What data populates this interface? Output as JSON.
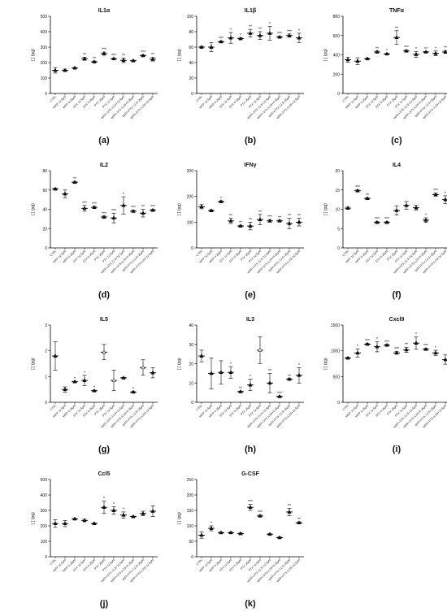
{
  "conditions": [
    "CTRL",
    "WFP 12.5µM",
    "WFP 6.25µM",
    "STX 12.5µM",
    "STX 6.25µM",
    "PTX 25µM",
    "PTX 12.5µM",
    "WFP+STX 12.5+12.5µM",
    "WFP+STX 6.25+6.25µM",
    "WFP+PTX 12.5+25µM",
    "WFP+PTX 6.25+12.5µM"
  ],
  "chart_data": [
    {
      "type": "scatter",
      "panel": "(a)",
      "title": "IL1α",
      "ylabel": "[ ] (pg)",
      "ylim": [
        0,
        500
      ],
      "yticks": [
        0,
        100,
        200,
        300,
        400,
        500
      ],
      "categories_ref": "conditions",
      "means": [
        150,
        150,
        165,
        225,
        205,
        258,
        225,
        215,
        212,
        245,
        222
      ],
      "sd": [
        18,
        8,
        3,
        10,
        5,
        10,
        3,
        15,
        4,
        5,
        12
      ],
      "markers": [
        "filled",
        "filled",
        "filled",
        "filled",
        "filled",
        "filled",
        "filled",
        "filled",
        "filled",
        "filled",
        "filled"
      ],
      "significance": [
        "",
        "",
        "",
        "**",
        "**",
        "***",
        "***",
        "**",
        "",
        "***",
        "**"
      ]
    },
    {
      "type": "scatter",
      "panel": "(b)",
      "title": "IL1β",
      "ylabel": "[ ] (pg)",
      "ylim": [
        0,
        100
      ],
      "yticks": [
        0,
        20,
        40,
        60,
        80,
        100
      ],
      "categories_ref": "conditions",
      "means": [
        60,
        60,
        67,
        72,
        71,
        78,
        75,
        78,
        73,
        75,
        72
      ],
      "sd": [
        1,
        6,
        1,
        7,
        1,
        5,
        5,
        9,
        1,
        2,
        6
      ],
      "markers": [
        "filled",
        "filled",
        "filled",
        "filled",
        "filled",
        "filled",
        "filled",
        "filled",
        "filled",
        "filled",
        "filled"
      ],
      "significance": [
        "",
        "",
        "***",
        "*",
        "*",
        "**",
        "**",
        "*",
        "***",
        "***",
        "*"
      ]
    },
    {
      "type": "scatter",
      "panel": "(c)",
      "title": "TNFα",
      "ylabel": "[ ] (pg)",
      "ylim": [
        0,
        800
      ],
      "yticks": [
        0,
        200,
        400,
        600,
        800
      ],
      "categories_ref": "conditions",
      "means": [
        350,
        335,
        360,
        430,
        410,
        580,
        440,
        405,
        430,
        415,
        430
      ],
      "sd": [
        25,
        35,
        5,
        10,
        5,
        70,
        10,
        30,
        5,
        25,
        15
      ],
      "markers": [
        "filled",
        "filled",
        "filled",
        "filled",
        "filled",
        "filled",
        "filled",
        "filled",
        "filled",
        "filled",
        "filled"
      ],
      "significance": [
        "",
        "",
        "",
        "**",
        "*",
        "**",
        "***",
        "*",
        "**",
        "*",
        "**"
      ]
    },
    {
      "type": "scatter",
      "panel": "(d)",
      "title": "IL2",
      "ylabel": "[ ] (pg)",
      "ylim": [
        0,
        80
      ],
      "yticks": [
        0,
        20,
        40,
        60,
        80
      ],
      "categories_ref": "conditions",
      "means": [
        61,
        56,
        68,
        41,
        42,
        32,
        31,
        44,
        38,
        36,
        39
      ],
      "sd": [
        1,
        4,
        1,
        3,
        1,
        1,
        5,
        9,
        1,
        4,
        1
      ],
      "markers": [
        "filled",
        "filled",
        "filled",
        "filled",
        "filled",
        "filled",
        "filled",
        "filled",
        "filled",
        "filled",
        "filled"
      ],
      "significance": [
        "",
        "",
        "**",
        "***",
        "***",
        "***",
        "***",
        "*",
        "***",
        "**",
        "***"
      ]
    },
    {
      "type": "scatter",
      "panel": "(e)",
      "title": "IFNγ",
      "ylabel": "[ ] (pg)",
      "ylim": [
        0,
        300
      ],
      "yticks": [
        0,
        100,
        200,
        300
      ],
      "categories_ref": "conditions",
      "means": [
        160,
        145,
        180,
        105,
        85,
        85,
        110,
        105,
        105,
        95,
        100
      ],
      "sd": [
        8,
        3,
        3,
        10,
        3,
        15,
        20,
        5,
        3,
        20,
        15
      ],
      "markers": [
        "filled",
        "filled",
        "filled",
        "filled",
        "filled",
        "filled",
        "filled",
        "filled",
        "filled",
        "filled",
        "filled"
      ],
      "significance": [
        "",
        "",
        "*",
        "**",
        "**",
        "**",
        "**",
        "***",
        "**",
        "**",
        "**"
      ]
    },
    {
      "type": "scatter",
      "panel": "(f)",
      "title": "IL4",
      "ylabel": "[ ] (pg)",
      "ylim": [
        0,
        20
      ],
      "yticks": [
        0,
        5,
        10,
        15,
        20
      ],
      "categories_ref": "conditions",
      "means": [
        10.3,
        14.8,
        12.8,
        6.6,
        6.6,
        9.7,
        11.0,
        10.4,
        7.2,
        13.8,
        12.5
      ],
      "sd": [
        0.3,
        0.3,
        0.2,
        0.2,
        0.2,
        1.2,
        1.0,
        0.6,
        0.6,
        0.4,
        1.0
      ],
      "markers": [
        "filled",
        "filled",
        "filled",
        "filled",
        "filled",
        "filled",
        "filled",
        "filled",
        "filled",
        "filled",
        "filled"
      ],
      "significance": [
        "",
        "***",
        "**",
        "***",
        "***",
        "",
        "",
        "",
        "*",
        "***",
        "*"
      ]
    },
    {
      "type": "scatter",
      "panel": "(g)",
      "title": "IL5",
      "ylabel": "[ ] (pg)",
      "ylim": [
        0,
        3
      ],
      "yticks": [
        0,
        1,
        2,
        3
      ],
      "categories_ref": "conditions",
      "means": [
        1.8,
        0.5,
        0.8,
        0.85,
        0.45,
        1.95,
        0.85,
        0.95,
        0.4,
        1.35,
        1.15
      ],
      "sd": [
        0.55,
        0.1,
        0.02,
        0.2,
        0.02,
        0.3,
        0.4,
        0.02,
        0.02,
        0.3,
        0.2
      ],
      "markers": [
        "filled",
        "filled",
        "filled",
        "filled",
        "filled",
        "open",
        "open",
        "filled",
        "filled",
        "open",
        "filled"
      ],
      "significance": [
        "",
        "",
        "*",
        "*",
        "*",
        "",
        "",
        "",
        "*",
        "",
        ""
      ]
    },
    {
      "type": "scatter",
      "panel": "(h)",
      "title": "IL3",
      "ylabel": "[ ] (pg)",
      "ylim": [
        0,
        40
      ],
      "yticks": [
        0,
        10,
        20,
        30,
        40
      ],
      "categories_ref": "conditions",
      "means": [
        24,
        15,
        15.5,
        15.5,
        5.5,
        9,
        27,
        10,
        3,
        12,
        14
      ],
      "sd": [
        3,
        8,
        6,
        3,
        0.3,
        3,
        7,
        5,
        0.3,
        0.3,
        4
      ],
      "markers": [
        "filled",
        "filled",
        "filled",
        "filled",
        "filled",
        "filled",
        "open",
        "filled",
        "filled",
        "filled",
        "filled"
      ],
      "significance": [
        "",
        "",
        "",
        "*",
        "**",
        "*",
        "",
        "**",
        "***",
        "**",
        "*"
      ]
    },
    {
      "type": "scatter",
      "panel": "(i)",
      "title": "Cxcl9",
      "ylabel": "[ ] (pg)",
      "ylim": [
        0,
        1500
      ],
      "yticks": [
        0,
        500,
        1000,
        1500
      ],
      "categories_ref": "conditions",
      "means": [
        860,
        960,
        1130,
        1080,
        1110,
        960,
        1020,
        1150,
        1030,
        960,
        830
      ],
      "sd": [
        15,
        80,
        15,
        100,
        15,
        25,
        50,
        120,
        20,
        50,
        90
      ],
      "markers": [
        "filled",
        "filled",
        "filled",
        "filled",
        "filled",
        "filled",
        "filled",
        "filled",
        "filled",
        "filled",
        "filled"
      ],
      "significance": [
        "",
        "*",
        "***",
        "*",
        "***",
        "***",
        "**",
        "*",
        "***",
        "*",
        ""
      ]
    },
    {
      "type": "scatter",
      "panel": "(j)",
      "title": "Ccl5",
      "ylabel": "[ ] (pg)",
      "ylim": [
        0,
        500
      ],
      "yticks": [
        0,
        100,
        200,
        300,
        400,
        500
      ],
      "categories_ref": "conditions",
      "means": [
        215,
        215,
        245,
        235,
        215,
        320,
        300,
        270,
        260,
        280,
        295
      ],
      "sd": [
        25,
        20,
        3,
        8,
        3,
        40,
        25,
        20,
        3,
        15,
        35
      ],
      "markers": [
        "filled",
        "filled",
        "filled",
        "filled",
        "filled",
        "filled",
        "filled",
        "filled",
        "filled",
        "filled",
        "filled"
      ],
      "significance": [
        "",
        "",
        "",
        "",
        "",
        "*",
        "*",
        "*",
        "",
        "",
        ""
      ]
    },
    {
      "type": "scatter",
      "panel": "(k)",
      "title": "G-CSF",
      "ylabel": "[ ] (pg)",
      "ylim": [
        0,
        250
      ],
      "yticks": [
        0,
        50,
        100,
        150,
        200,
        250
      ],
      "categories_ref": "conditions",
      "means": [
        70,
        92,
        78,
        78,
        75,
        160,
        132,
        73,
        62,
        145,
        110
      ],
      "sd": [
        10,
        8,
        2,
        2,
        2,
        10,
        3,
        2,
        2,
        12,
        3
      ],
      "markers": [
        "filled",
        "filled",
        "filled",
        "filled",
        "filled",
        "filled",
        "filled",
        "filled",
        "filled",
        "filled",
        "filled"
      ],
      "significance": [
        "",
        "*",
        "",
        "",
        "",
        "***",
        "***",
        "",
        "",
        "**",
        "**"
      ]
    }
  ]
}
